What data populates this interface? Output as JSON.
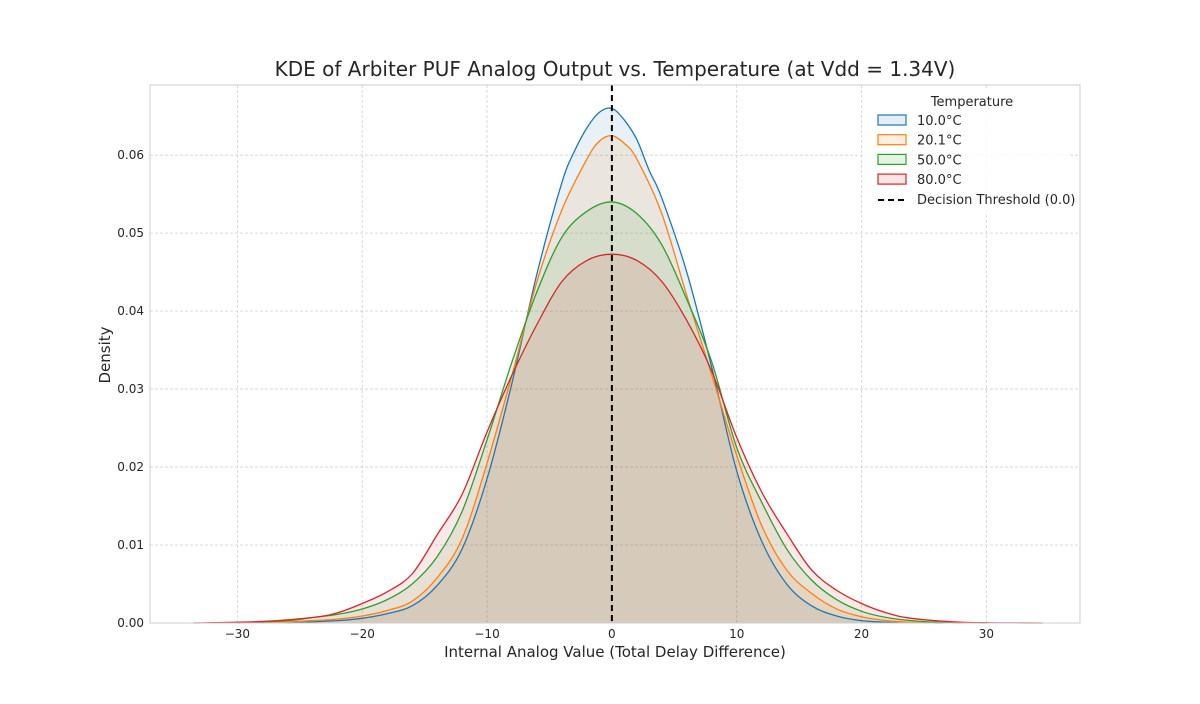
{
  "chart_data": {
    "type": "area",
    "title": "KDE of Arbiter PUF Analog Output vs. Temperature (at Vdd = 1.34V)",
    "xlabel": "Internal Analog Value (Total Delay Difference)",
    "ylabel": "Density",
    "xlim": [
      -37,
      37.5
    ],
    "ylim": [
      0,
      0.069
    ],
    "xticks": [
      -30,
      -20,
      -10,
      0,
      10,
      20,
      30
    ],
    "xtick_labels": [
      "−30",
      "−20",
      "−10",
      "0",
      "10",
      "20",
      "30"
    ],
    "yticks": [
      0.0,
      0.01,
      0.02,
      0.03,
      0.04,
      0.05,
      0.06
    ],
    "ytick_labels": [
      "0.00",
      "0.01",
      "0.02",
      "0.03",
      "0.04",
      "0.05",
      "0.06"
    ],
    "grid": true,
    "legend": {
      "title": "Temperature",
      "placement": "top-right",
      "threshold_label": "Decision Threshold (0.0)"
    },
    "threshold_x": 0.0,
    "series": [
      {
        "name": "10.0°C",
        "color": "#1f77b4",
        "x": [
          -26,
          -22,
          -20,
          -18,
          -16,
          -14,
          -12,
          -10,
          -8,
          -6,
          -4,
          -3,
          -2,
          -1,
          0,
          1,
          2,
          3,
          4,
          6,
          8,
          10,
          12,
          14,
          16,
          18,
          20,
          22,
          26.5
        ],
        "y": [
          0.0,
          0.0003,
          0.0006,
          0.0012,
          0.0022,
          0.0048,
          0.0095,
          0.0185,
          0.0308,
          0.0448,
          0.0565,
          0.0605,
          0.0635,
          0.0655,
          0.066,
          0.0645,
          0.062,
          0.058,
          0.0545,
          0.045,
          0.0328,
          0.0195,
          0.0105,
          0.005,
          0.0022,
          0.0009,
          0.0003,
          0.0001,
          0.0
        ]
      },
      {
        "name": "20.1°C",
        "color": "#ff7f0e",
        "x": [
          -28,
          -24,
          -22,
          -20,
          -18,
          -16,
          -14,
          -12,
          -10,
          -8,
          -6,
          -4,
          -2,
          -1,
          0,
          1,
          2,
          4,
          6,
          8,
          10,
          12,
          14,
          16,
          18,
          20,
          22,
          24,
          28
        ],
        "y": [
          0.0,
          0.0003,
          0.0005,
          0.0009,
          0.0016,
          0.0028,
          0.0058,
          0.0108,
          0.0205,
          0.0318,
          0.0438,
          0.053,
          0.0595,
          0.0618,
          0.0625,
          0.0615,
          0.0595,
          0.0525,
          0.042,
          0.0318,
          0.0215,
          0.0125,
          0.0068,
          0.0038,
          0.0018,
          0.0008,
          0.0003,
          0.0001,
          0.0
        ]
      },
      {
        "name": "50.0°C",
        "color": "#2ca02c",
        "x": [
          -30,
          -26,
          -24,
          -22,
          -20,
          -18,
          -16,
          -14,
          -12,
          -10,
          -8,
          -6,
          -4,
          -2,
          0,
          2,
          4,
          6,
          8,
          10,
          12,
          14,
          16,
          18,
          20,
          22,
          24,
          26,
          30
        ],
        "y": [
          0.0,
          0.0003,
          0.0007,
          0.0011,
          0.0018,
          0.003,
          0.005,
          0.0085,
          0.0143,
          0.0235,
          0.0335,
          0.0425,
          0.0495,
          0.0528,
          0.054,
          0.0525,
          0.0485,
          0.0415,
          0.0335,
          0.0225,
          0.0155,
          0.0095,
          0.0055,
          0.003,
          0.0015,
          0.0007,
          0.0003,
          0.0001,
          0.0
        ]
      },
      {
        "name": "80.0°C",
        "color": "#d62728",
        "x": [
          -33.5,
          -28,
          -24,
          -22,
          -20,
          -18,
          -16,
          -14,
          -12,
          -10,
          -8,
          -6,
          -4,
          -2,
          0,
          2,
          4,
          6,
          8,
          10,
          12,
          14,
          16,
          18,
          20,
          22,
          24,
          28,
          34.5
        ],
        "y": [
          0.0,
          0.0002,
          0.0007,
          0.0013,
          0.0025,
          0.004,
          0.0063,
          0.0113,
          0.0165,
          0.0245,
          0.0318,
          0.0383,
          0.0438,
          0.0465,
          0.0473,
          0.0465,
          0.0438,
          0.0388,
          0.0323,
          0.0238,
          0.0168,
          0.0115,
          0.0068,
          0.0042,
          0.0025,
          0.0013,
          0.0006,
          0.0001,
          0.0
        ]
      }
    ]
  }
}
